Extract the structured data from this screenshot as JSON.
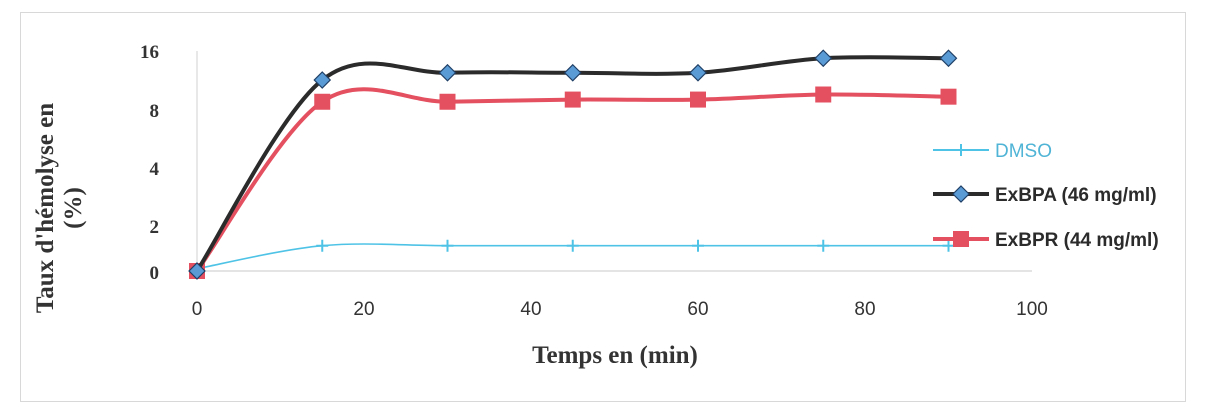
{
  "chart_data": {
    "type": "line",
    "title": "",
    "xlabel": "Temps en (min)",
    "ylabel_lines": [
      "Taux d'hémolyse en",
      "(%)"
    ],
    "x_ticks": [
      0,
      20,
      40,
      60,
      80,
      100
    ],
    "xlim": [
      0,
      100
    ],
    "y_tick_labels": [
      "0",
      "2",
      "4",
      "8",
      "16"
    ],
    "legend_position": "right",
    "x": [
      0,
      15,
      30,
      45,
      60,
      75,
      90
    ],
    "series": [
      {
        "name": "DMSO",
        "color": "#4fc3e6",
        "marker": "plus",
        "values": [
          0.1,
          1.1,
          1.1,
          1.1,
          1.1,
          1.1,
          1.1
        ]
      },
      {
        "name": "ExBPA (46 mg/ml)",
        "color": "#2b2b2b",
        "marker": "diamond",
        "marker_color": "#5b9bd5",
        "values": [
          0,
          12,
          13,
          13,
          13,
          15,
          15
        ]
      },
      {
        "name": "ExBPR (44 mg/ml)",
        "color": "#e45060",
        "marker": "square",
        "values": [
          0,
          9,
          9,
          9.3,
          9.3,
          10,
          9.7
        ]
      }
    ]
  }
}
